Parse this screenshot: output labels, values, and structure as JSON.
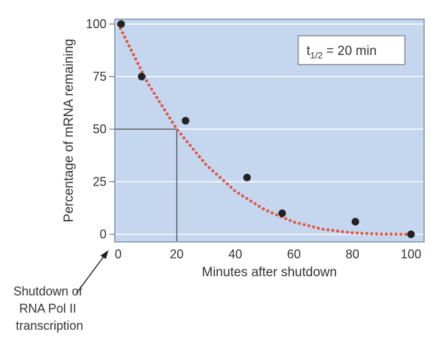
{
  "chart_data": {
    "type": "scatter",
    "title": "",
    "xlabel": "Minutes after shutdown",
    "ylabel": "Percentage of mRNA remaining",
    "xlim": [
      0,
      100
    ],
    "ylim": [
      0,
      100
    ],
    "xticks": [
      "0",
      "20",
      "40",
      "60",
      "80",
      "100"
    ],
    "yticks": [
      "0",
      "25",
      "50",
      "75",
      "100"
    ],
    "grid": true,
    "points": [
      {
        "x": 1,
        "y": 100
      },
      {
        "x": 8,
        "y": 75
      },
      {
        "x": 23,
        "y": 54
      },
      {
        "x": 44,
        "y": 27
      },
      {
        "x": 56,
        "y": 10
      },
      {
        "x": 81,
        "y": 6
      },
      {
        "x": 100,
        "y": 0
      }
    ],
    "fit_curve": {
      "x": [
        0,
        10,
        20,
        30,
        40,
        50,
        60,
        70,
        80,
        90,
        100
      ],
      "y": [
        100,
        72.1,
        50,
        33.1,
        20.5,
        11.7,
        5.8,
        2.4,
        0.7,
        0.1,
        0
      ]
    },
    "half_life_marker": {
      "x": 20,
      "y": 50
    },
    "annotation_box": {
      "main": "t",
      "sub": "1/2",
      "rest": " = 20 min"
    },
    "arrow_annotation": [
      "Shutdown of",
      "RNA Pol II",
      "transcription"
    ],
    "colors": {
      "plot_bg": "#c5d7ee",
      "curve": "#e0564a",
      "point": "#222222",
      "frame": "#8fa3ba"
    }
  }
}
